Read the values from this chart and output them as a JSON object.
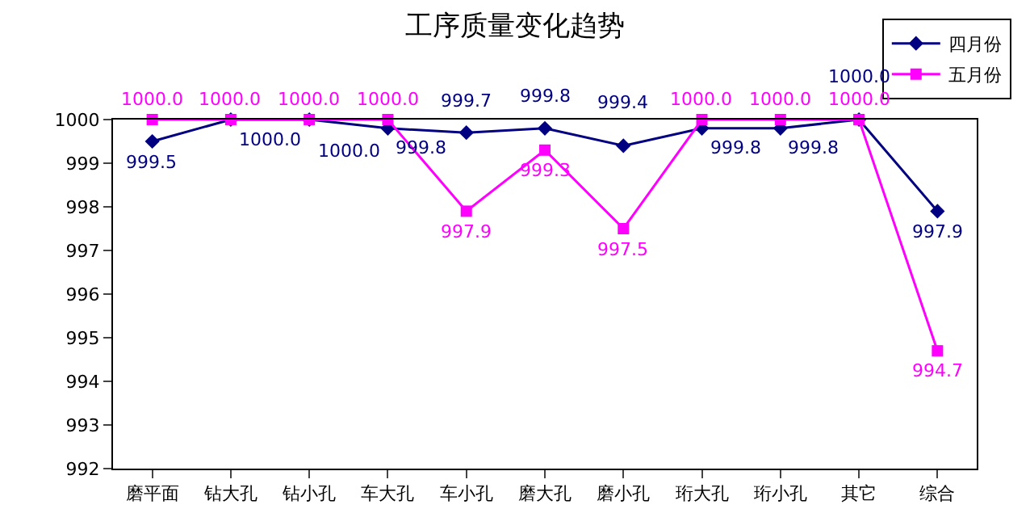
{
  "chart_data": {
    "type": "line",
    "title": "工序质量变化趋势",
    "categories": [
      "磨平面",
      "钻大孔",
      "钻小孔",
      "车大孔",
      "车小孔",
      "磨大孔",
      "磨小孔",
      "珩大孔",
      "珩小孔",
      "其它",
      "综合"
    ],
    "series": [
      {
        "name": "四月份",
        "color": "#000080",
        "marker": "diamond",
        "values": [
          999.5,
          1000.0,
          1000.0,
          999.8,
          999.7,
          999.8,
          999.4,
          999.8,
          999.8,
          1000.0,
          997.9
        ],
        "value_labels": [
          "999.5",
          "1000.0",
          "1000.0",
          "999.8",
          "999.7",
          "999.8",
          "999.4",
          "999.8",
          "999.8",
          "1000.0",
          "997.9"
        ]
      },
      {
        "name": "五月份",
        "color": "#ff00ff",
        "marker": "square",
        "values": [
          1000.0,
          1000.0,
          1000.0,
          1000.0,
          997.9,
          999.3,
          997.5,
          1000.0,
          1000.0,
          1000.0,
          994.7
        ],
        "value_labels": [
          "1000.0",
          "1000.0",
          "1000.0",
          "1000.0",
          "997.9",
          "999.3",
          "997.5",
          "1000.0",
          "1000.0",
          "1000.0",
          "994.7"
        ]
      }
    ],
    "ylim": [
      992,
      1000
    ],
    "yticks": [
      992,
      993,
      994,
      995,
      996,
      997,
      998,
      999,
      1000
    ],
    "grid": false,
    "legend": "top right",
    "line_style": "solid"
  }
}
